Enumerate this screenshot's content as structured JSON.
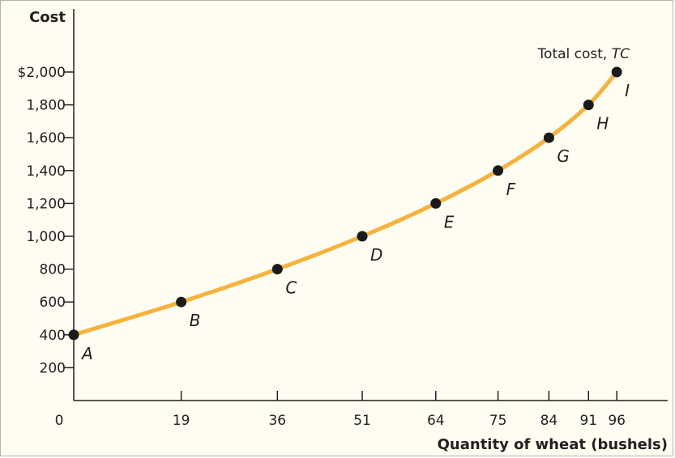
{
  "chart_data": {
    "type": "line",
    "ylabel": "Cost",
    "xlabel": "Quantity of wheat (bushels)",
    "x_ticks": [
      0,
      19,
      36,
      51,
      64,
      75,
      84,
      91,
      96
    ],
    "y_ticks": [
      200,
      400,
      600,
      800,
      1000,
      1200,
      1400,
      1600,
      1800,
      2000
    ],
    "y_tick_labels": [
      "200",
      "400",
      "600",
      "800",
      "1,000",
      "1,200",
      "1,400",
      "1,600",
      "1,800",
      "$2,000"
    ],
    "xlim": [
      0,
      105
    ],
    "ylim": [
      0,
      2000
    ],
    "series": [
      {
        "name": "Total cost, TC",
        "name_prefix": "Total cost, ",
        "name_italic": "TC",
        "color": "#f7b23b",
        "points": [
          {
            "x": 0,
            "y": 400,
            "label": "A"
          },
          {
            "x": 19,
            "y": 600,
            "label": "B"
          },
          {
            "x": 36,
            "y": 800,
            "label": "C"
          },
          {
            "x": 51,
            "y": 1000,
            "label": "D"
          },
          {
            "x": 64,
            "y": 1200,
            "label": "E"
          },
          {
            "x": 75,
            "y": 1400,
            "label": "F"
          },
          {
            "x": 84,
            "y": 1600,
            "label": "G"
          },
          {
            "x": 91,
            "y": 1800,
            "label": "H"
          },
          {
            "x": 96,
            "y": 2000,
            "label": "I"
          }
        ]
      }
    ],
    "grid": false,
    "colors": {
      "background": "#fffdf2",
      "axis": "#231f20",
      "curve": "#f7b23b",
      "points": "#1a1a1a"
    }
  }
}
